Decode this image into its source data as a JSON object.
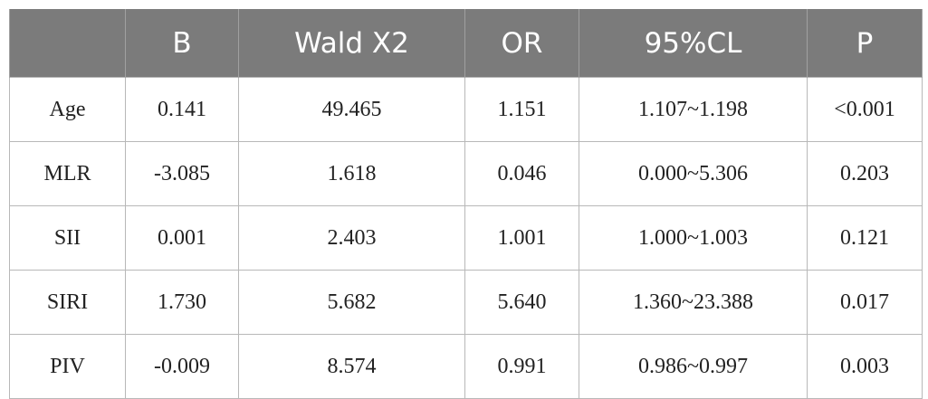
{
  "table": {
    "header": [
      "",
      "B",
      "Wald X2",
      "OR",
      "95%CL",
      "P"
    ],
    "rows": [
      [
        "Age",
        "0.141",
        "49.465",
        "1.151",
        "1.107~1.198",
        "<0.001"
      ],
      [
        "MLR",
        "-3.085",
        "1.618",
        "0.046",
        "0.000~5.306",
        "0.203"
      ],
      [
        "SII",
        "0.001",
        "2.403",
        "1.001",
        "1.000~1.003",
        "0.121"
      ],
      [
        "SIRI",
        "1.730",
        "5.682",
        "5.640",
        "1.360~23.388",
        "0.017"
      ],
      [
        "PIV",
        "-0.009",
        "8.574",
        "0.991",
        "0.986~0.997",
        "0.003"
      ]
    ]
  }
}
